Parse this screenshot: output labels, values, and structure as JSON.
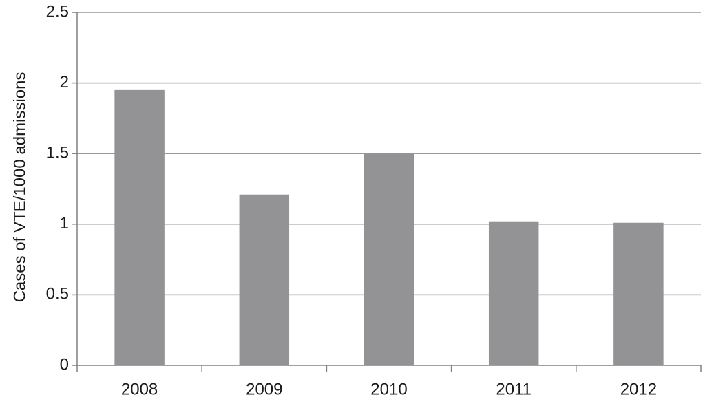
{
  "chart_data": {
    "type": "bar",
    "y_label": "Cases of VTE/1000 admissions",
    "categories": [
      "2008",
      "2009",
      "2010",
      "2011",
      "2012"
    ],
    "values": [
      1.95,
      1.21,
      1.5,
      1.02,
      1.01
    ],
    "color": "#939395",
    "ylim": [
      0,
      2.5
    ],
    "yticks": [
      0,
      0.5,
      1,
      1.5,
      2,
      2.5
    ],
    "grid": true
  }
}
